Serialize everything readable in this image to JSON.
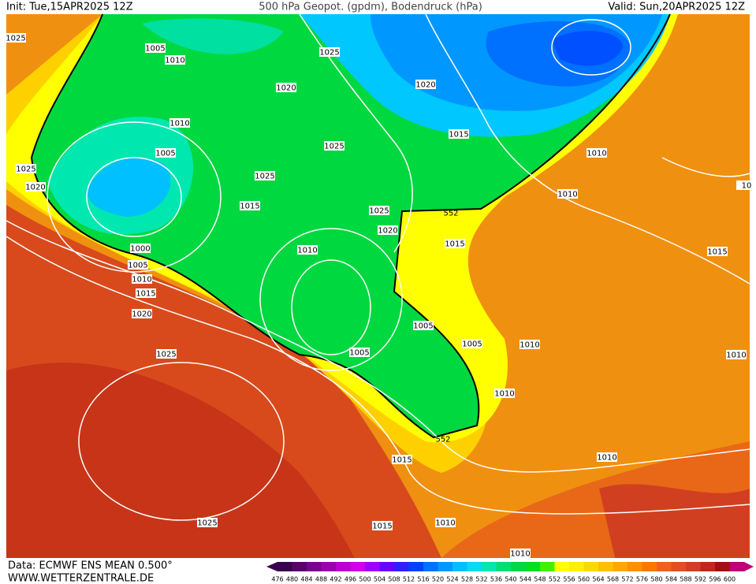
{
  "header": {
    "init": "Init: Tue,15APR2025 12Z",
    "title": "500 hPa Geopot. (gpdm), Bodendruck (hPa)",
    "valid": "Valid: Sun,20APR2025 12Z"
  },
  "footer": {
    "source": "Data: ECMWF ENS MEAN 0.500°",
    "site": "WWW.WETTERZENTRALE.DE"
  },
  "contour_labels": [
    "552",
    "552"
  ],
  "isobar_labels": [
    "1025",
    "1005",
    "1010",
    "1025",
    "1020",
    "1020",
    "1010",
    "1005",
    "1025",
    "1015",
    "1010",
    "1025",
    "1025",
    "1020",
    "1015",
    "1025",
    "1010",
    "1020",
    "1015",
    "1010",
    "1000",
    "1005",
    "1010",
    "1015",
    "1020",
    "1015",
    "1005",
    "1005",
    "1010",
    "1005",
    "1025",
    "1010",
    "1010",
    "1015",
    "1010",
    "1015",
    "1010",
    "1025",
    "1010",
    "10"
  ],
  "scale": {
    "values": [
      476,
      480,
      484,
      488,
      492,
      496,
      500,
      504,
      508,
      512,
      516,
      520,
      524,
      528,
      532,
      536,
      540,
      544,
      548,
      552,
      556,
      560,
      564,
      568,
      572,
      576,
      580,
      584,
      588,
      592,
      596,
      600
    ],
    "colors": [
      "#3a0050",
      "#5a006e",
      "#7a008e",
      "#9a00ae",
      "#ba00ce",
      "#d000e8",
      "#a000ff",
      "#6a00ff",
      "#3020ff",
      "#0040ff",
      "#0070ff",
      "#0098ff",
      "#00c0ff",
      "#00dcf0",
      "#00e8b0",
      "#00e070",
      "#00d840",
      "#00e020",
      "#40f000",
      "#ffff00",
      "#fff000",
      "#ffd800",
      "#ffc000",
      "#ffa800",
      "#ff9000",
      "#f87800",
      "#f06020",
      "#e05020",
      "#d04020",
      "#c02818",
      "#a01010",
      "#c0007a"
    ]
  }
}
